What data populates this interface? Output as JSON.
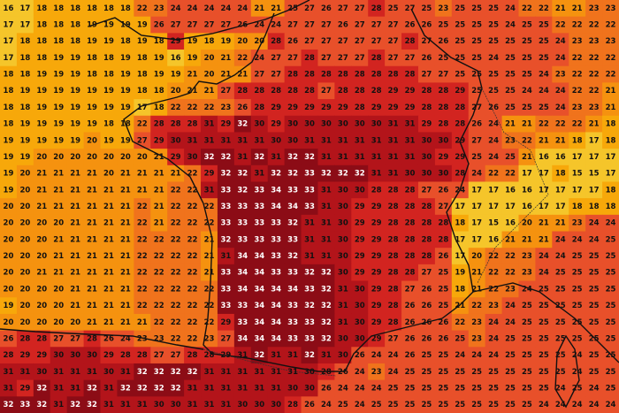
{
  "grid": {
    "rows": [
      [
        16,
        17,
        18,
        18,
        18,
        18,
        18,
        18,
        22,
        23,
        24,
        24,
        24,
        24,
        24,
        21,
        21,
        25,
        27,
        26,
        27,
        27,
        28,
        25,
        27,
        25,
        23,
        25,
        25,
        25,
        24,
        22,
        22,
        21,
        21,
        23,
        23
      ],
      [
        17,
        17,
        18,
        18,
        18,
        19,
        19,
        19,
        19,
        26,
        27,
        27,
        27,
        27,
        26,
        24,
        24,
        27,
        27,
        27,
        26,
        27,
        27,
        27,
        26,
        26,
        25,
        25,
        25,
        25,
        24,
        25,
        25,
        22,
        22,
        22,
        22
      ],
      [
        17,
        18,
        18,
        18,
        18,
        19,
        19,
        18,
        19,
        18,
        29,
        19,
        18,
        19,
        20,
        20,
        28,
        26,
        27,
        27,
        27,
        27,
        27,
        27,
        28,
        27,
        26,
        25,
        25,
        25,
        25,
        25,
        25,
        24,
        23,
        23,
        23
      ],
      [
        17,
        18,
        18,
        19,
        19,
        18,
        18,
        19,
        18,
        19,
        16,
        19,
        20,
        21,
        22,
        24,
        27,
        27,
        28,
        27,
        27,
        27,
        28,
        27,
        27,
        26,
        25,
        25,
        25,
        24,
        25,
        25,
        25,
        24,
        22,
        22,
        22
      ],
      [
        18,
        18,
        19,
        19,
        19,
        18,
        18,
        19,
        18,
        19,
        19,
        21,
        20,
        21,
        21,
        27,
        27,
        28,
        28,
        28,
        28,
        28,
        28,
        28,
        28,
        27,
        27,
        25,
        25,
        25,
        25,
        25,
        24,
        23,
        22,
        22,
        22
      ],
      [
        18,
        19,
        19,
        19,
        19,
        19,
        19,
        19,
        18,
        18,
        20,
        21,
        21,
        27,
        28,
        28,
        28,
        28,
        28,
        27,
        28,
        28,
        28,
        29,
        29,
        28,
        28,
        29,
        25,
        25,
        25,
        24,
        24,
        24,
        22,
        22,
        21
      ],
      [
        18,
        18,
        19,
        19,
        19,
        19,
        19,
        19,
        17,
        18,
        22,
        22,
        22,
        23,
        26,
        28,
        29,
        29,
        29,
        29,
        29,
        28,
        29,
        29,
        29,
        28,
        28,
        28,
        27,
        26,
        25,
        25,
        25,
        24,
        23,
        23,
        21
      ],
      [
        18,
        19,
        19,
        19,
        19,
        19,
        18,
        18,
        22,
        28,
        28,
        28,
        31,
        29,
        32,
        30,
        29,
        30,
        30,
        30,
        30,
        30,
        30,
        31,
        31,
        29,
        28,
        28,
        26,
        24,
        21,
        21,
        22,
        22,
        22,
        21,
        18
      ],
      [
        19,
        19,
        19,
        19,
        19,
        20,
        19,
        19,
        27,
        29,
        30,
        31,
        31,
        31,
        31,
        31,
        30,
        30,
        31,
        31,
        31,
        31,
        31,
        31,
        31,
        30,
        30,
        29,
        27,
        24,
        23,
        22,
        21,
        21,
        18,
        17,
        18
      ],
      [
        19,
        19,
        20,
        20,
        20,
        20,
        20,
        20,
        20,
        21,
        29,
        30,
        32,
        32,
        31,
        32,
        31,
        32,
        32,
        31,
        31,
        31,
        31,
        31,
        31,
        30,
        29,
        29,
        25,
        24,
        25,
        21,
        16,
        16,
        17,
        17,
        17
      ],
      [
        19,
        20,
        21,
        21,
        21,
        21,
        20,
        21,
        21,
        21,
        21,
        22,
        29,
        32,
        32,
        31,
        32,
        32,
        33,
        32,
        32,
        32,
        31,
        31,
        30,
        30,
        30,
        28,
        24,
        22,
        22,
        17,
        17,
        18,
        15,
        15,
        17
      ],
      [
        19,
        20,
        21,
        21,
        21,
        21,
        21,
        21,
        21,
        21,
        22,
        22,
        31,
        33,
        32,
        33,
        34,
        33,
        33,
        31,
        30,
        30,
        28,
        28,
        28,
        27,
        26,
        24,
        17,
        17,
        16,
        16,
        17,
        17,
        17,
        17,
        18
      ],
      [
        20,
        20,
        21,
        21,
        21,
        21,
        21,
        21,
        22,
        21,
        22,
        22,
        22,
        33,
        33,
        33,
        34,
        34,
        33,
        31,
        30,
        29,
        29,
        28,
        28,
        28,
        27,
        17,
        17,
        17,
        17,
        16,
        17,
        17,
        18,
        18,
        18
      ],
      [
        20,
        20,
        20,
        20,
        21,
        21,
        21,
        21,
        22,
        21,
        22,
        22,
        22,
        33,
        33,
        33,
        33,
        32,
        31,
        31,
        30,
        29,
        29,
        28,
        28,
        28,
        28,
        18,
        17,
        15,
        16,
        20,
        21,
        21,
        23,
        24,
        24
      ],
      [
        20,
        20,
        20,
        21,
        21,
        21,
        21,
        21,
        22,
        22,
        22,
        22,
        21,
        32,
        33,
        33,
        33,
        33,
        31,
        31,
        30,
        29,
        29,
        28,
        28,
        28,
        28,
        17,
        17,
        16,
        21,
        21,
        21,
        24,
        24,
        24,
        25
      ],
      [
        20,
        20,
        20,
        21,
        21,
        21,
        21,
        21,
        22,
        22,
        22,
        22,
        21,
        31,
        34,
        34,
        33,
        32,
        31,
        31,
        30,
        29,
        29,
        28,
        28,
        28,
        26,
        17,
        20,
        22,
        22,
        23,
        24,
        24,
        25,
        25,
        25
      ],
      [
        20,
        20,
        21,
        21,
        21,
        21,
        21,
        21,
        22,
        22,
        22,
        22,
        21,
        33,
        34,
        34,
        33,
        33,
        32,
        32,
        30,
        29,
        29,
        28,
        28,
        27,
        25,
        19,
        21,
        22,
        22,
        23,
        24,
        25,
        25,
        25,
        25
      ],
      [
        20,
        20,
        20,
        20,
        21,
        21,
        21,
        21,
        22,
        22,
        22,
        22,
        22,
        33,
        34,
        34,
        34,
        34,
        33,
        32,
        31,
        30,
        29,
        28,
        27,
        26,
        25,
        18,
        21,
        22,
        23,
        24,
        25,
        25,
        25,
        25,
        25
      ],
      [
        19,
        20,
        20,
        20,
        21,
        21,
        21,
        21,
        22,
        22,
        22,
        22,
        22,
        33,
        33,
        34,
        34,
        33,
        32,
        32,
        31,
        30,
        29,
        28,
        26,
        26,
        25,
        21,
        22,
        23,
        24,
        25,
        25,
        25,
        25,
        25,
        25
      ],
      [
        20,
        20,
        20,
        20,
        20,
        21,
        21,
        21,
        21,
        22,
        22,
        22,
        22,
        29,
        33,
        34,
        34,
        33,
        33,
        32,
        31,
        30,
        29,
        28,
        26,
        26,
        26,
        22,
        23,
        24,
        24,
        25,
        25,
        25,
        25,
        25,
        25
      ],
      [
        26,
        28,
        28,
        27,
        27,
        28,
        26,
        24,
        23,
        23,
        22,
        22,
        23,
        27,
        34,
        34,
        34,
        33,
        33,
        32,
        30,
        30,
        29,
        27,
        26,
        26,
        26,
        25,
        23,
        24,
        25,
        25,
        25,
        25,
        25,
        25,
        25
      ],
      [
        28,
        29,
        29,
        30,
        30,
        30,
        29,
        28,
        28,
        27,
        27,
        28,
        28,
        29,
        31,
        32,
        31,
        31,
        32,
        31,
        30,
        26,
        24,
        24,
        26,
        25,
        25,
        24,
        24,
        24,
        25,
        25,
        25,
        25,
        24,
        25,
        25
      ],
      [
        31,
        31,
        30,
        31,
        31,
        31,
        30,
        31,
        32,
        32,
        32,
        32,
        31,
        31,
        31,
        31,
        31,
        31,
        30,
        28,
        26,
        24,
        23,
        24,
        25,
        25,
        25,
        25,
        25,
        25,
        25,
        25,
        25,
        25,
        24,
        25,
        25
      ],
      [
        31,
        29,
        32,
        31,
        31,
        32,
        31,
        32,
        32,
        32,
        32,
        31,
        31,
        31,
        31,
        31,
        31,
        30,
        30,
        26,
        24,
        24,
        24,
        25,
        25,
        25,
        25,
        25,
        25,
        25,
        25,
        25,
        25,
        24,
        25,
        24,
        25
      ],
      [
        32,
        33,
        32,
        31,
        32,
        32,
        31,
        31,
        31,
        30,
        30,
        31,
        31,
        31,
        30,
        30,
        30,
        28,
        26,
        24,
        25,
        24,
        25,
        25,
        25,
        25,
        25,
        25,
        25,
        25,
        25,
        25,
        24,
        24,
        24,
        24,
        24
      ]
    ]
  }
}
